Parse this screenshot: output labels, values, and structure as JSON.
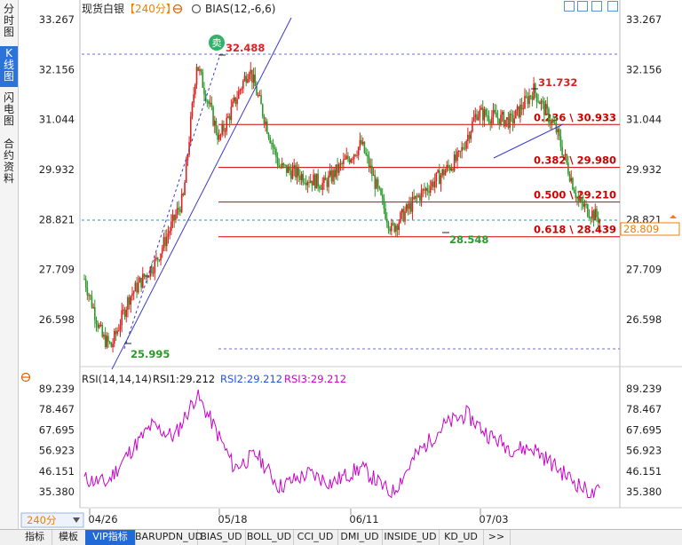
{
  "sidebar": {
    "tabs": [
      {
        "label": "分时图",
        "active": false
      },
      {
        "label": "K线图",
        "active": true
      },
      {
        "label": "闪电图",
        "active": false
      },
      {
        "label": "合约资料",
        "active": false
      }
    ]
  },
  "header": {
    "instrument": "现货白银",
    "period": "【240分】",
    "indicator": "BIAS(12,-6,6)"
  },
  "toolbar": {
    "icons": [
      "expand-icon",
      "zoom-in-icon",
      "zoom-out-icon",
      "fullscreen-icon"
    ]
  },
  "chart_data": [
    {
      "type": "candlestick",
      "price_axis": {
        "ticks": [
          "33.267",
          "32.156",
          "31.044",
          "29.932",
          "28.821",
          "27.709",
          "26.598"
        ],
        "ylim": [
          26.598,
          33.267
        ]
      },
      "current_price": "28.809",
      "x_ticks": [
        "04/26",
        "05/18",
        "06/11",
        "07/03"
      ],
      "signal_label": "卖",
      "annotations": {
        "high": "32.488",
        "low": "25.995",
        "swing_high": "31.732",
        "swing_low": "28.548"
      },
      "fibonacci": [
        {
          "ratio": "0.236",
          "price": "30.933"
        },
        {
          "ratio": "0.382",
          "price": "29.980"
        },
        {
          "ratio": "0.500",
          "price": "29.210"
        },
        {
          "ratio": "0.618",
          "price": "28.439"
        }
      ],
      "colors": {
        "up": "#e02020",
        "down": "#2a9a2a",
        "fib": "#d00000",
        "trend": "#3b3bd0"
      }
    },
    {
      "type": "line",
      "title": "RSI(14,14,14)",
      "series": [
        {
          "name": "RSI1",
          "value": "29.212",
          "color": "#111111"
        },
        {
          "name": "RSI2",
          "value": "29.212",
          "color": "#2255dd"
        },
        {
          "name": "RSI3",
          "value": "29.212",
          "color": "#cc00cc"
        }
      ],
      "y_ticks": [
        "89.239",
        "78.467",
        "67.695",
        "56.923",
        "46.151",
        "35.380"
      ],
      "ylim": [
        35.38,
        89.239
      ]
    }
  ],
  "period_selector": "240分",
  "bottom_tabs": [
    "指标",
    "模板",
    "VIP指标",
    "BARUPDN_UD",
    "BIAS_UD",
    "BOLL_UD",
    "CCI_UD",
    "DMI_UD",
    "INSIDE_UD",
    "KD_UD",
    ">>"
  ],
  "active_bottom_tab": "VIP指标"
}
